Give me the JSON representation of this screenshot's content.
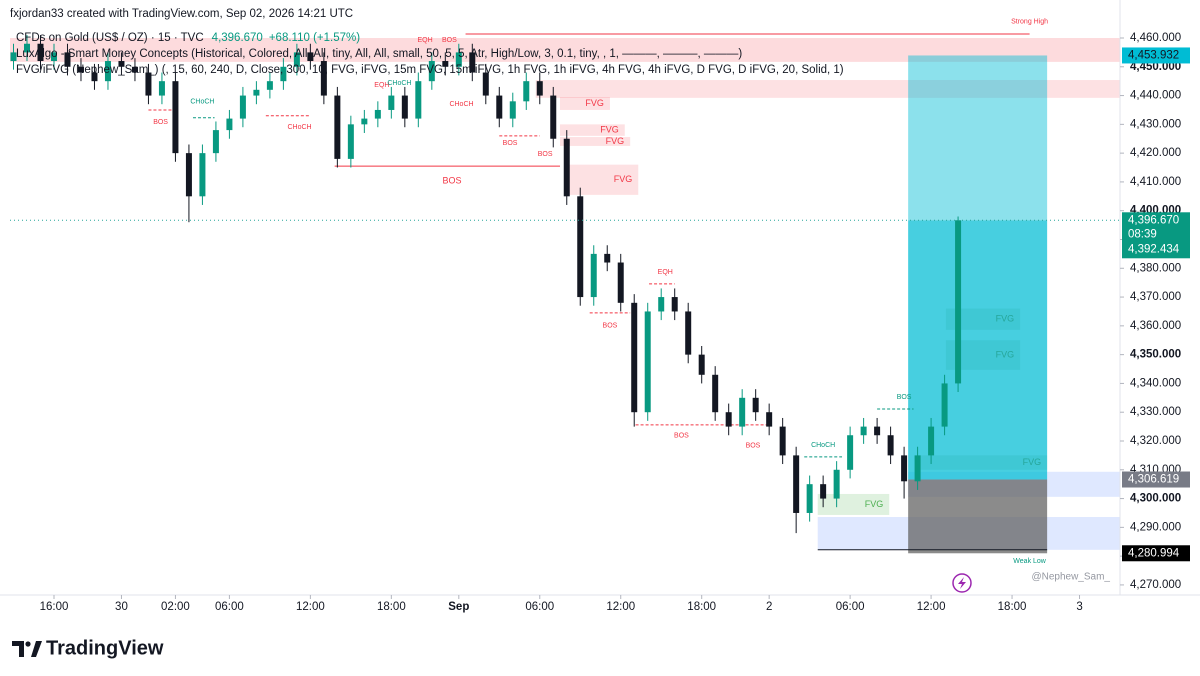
{
  "chart_data": {
    "type": "candlestick",
    "credit": "fxjordan33 created with TradingView.com, Sep 02, 2026 14:21 UTC",
    "title": "CFDs on Gold (US$ / OZ) · 15 · TVC",
    "price_text": "4,396.670",
    "change_text": "+68.110 (+1.57%)",
    "indicators": [
      "LuxAlgo - Smart Money Concepts (Historical, Colored, All, All, tiny, All, All, small, 50, 5, 5, Atr, High/Low, 3, 0.1, tiny, , 1, ———, ———, ———)",
      "FVG/iFVG (Nephew_Sam_) (, 15, 60, 240, D, Close, 300, 10, FVG, iFVG, 15m FVG, 15m iFVG, 1h FVG, 1h iFVG, 4h FVG, 4h iFVG, D FVG, D iFVG, 20, Solid, 1)"
    ],
    "watermark": "@Nephew_Sam_",
    "brand": "TradingView",
    "grid": false,
    "xlim": [
      -3.26,
      79
    ],
    "ylim": [
      4266.5,
      4466.25
    ],
    "xticks": [
      {
        "value": 0,
        "label": "16:00"
      },
      {
        "value": 5,
        "label": "30"
      },
      {
        "value": 9,
        "label": "02:00"
      },
      {
        "value": 13,
        "label": "06:00"
      },
      {
        "value": 19,
        "label": "12:00"
      },
      {
        "value": 25,
        "label": "18:00"
      },
      {
        "value": 30,
        "label": "Sep",
        "bold": true
      },
      {
        "value": 36,
        "label": "06:00"
      },
      {
        "value": 42,
        "label": "12:00"
      },
      {
        "value": 48,
        "label": "18:00"
      },
      {
        "value": 53,
        "label": "2"
      },
      {
        "value": 59,
        "label": "06:00"
      },
      {
        "value": 65,
        "label": "12:00"
      },
      {
        "value": 71,
        "label": "18:00"
      },
      {
        "value": 76,
        "label": "3"
      }
    ],
    "yticks": [
      {
        "value": 4270,
        "label": "4,270.000"
      },
      {
        "value": 4280,
        "label": "4,280.000"
      },
      {
        "value": 4290,
        "label": "4,290.000"
      },
      {
        "value": 4300,
        "label": "4,300.000"
      },
      {
        "value": 4310,
        "label": "4,310.000"
      },
      {
        "value": 4320,
        "label": "4,320.000"
      },
      {
        "value": 4330,
        "label": "4,330.000"
      },
      {
        "value": 4340,
        "label": "4,340.000"
      },
      {
        "value": 4350,
        "label": "4,350.000"
      },
      {
        "value": 4360,
        "label": "4,360.000"
      },
      {
        "value": 4370,
        "label": "4,370.000"
      },
      {
        "value": 4380,
        "label": "4,380.000"
      },
      {
        "value": 4390,
        "label": "4,390.000"
      },
      {
        "value": 4400,
        "label": "4,400.000"
      },
      {
        "value": 4410,
        "label": "4,410.000"
      },
      {
        "value": 4420,
        "label": "4,420.000"
      },
      {
        "value": 4430,
        "label": "4,430.000"
      },
      {
        "value": 4440,
        "label": "4,440.000"
      },
      {
        "value": 4450,
        "label": "4,450.000"
      },
      {
        "value": 4460,
        "label": "4,460.000"
      }
    ],
    "candles": {
      "up_color": "#089981",
      "down_color": "#131722",
      "x": [
        -3,
        -2,
        -1,
        0,
        1,
        2,
        3,
        4,
        5,
        6,
        7,
        8,
        9,
        10,
        11,
        12,
        13,
        14,
        15,
        16,
        17,
        18,
        19,
        20,
        21,
        22,
        23,
        24,
        25,
        26,
        27,
        28,
        29,
        30,
        31,
        32,
        33,
        34,
        35,
        36,
        37,
        38,
        39,
        40,
        41,
        42,
        43,
        44,
        45,
        46,
        47,
        48,
        49,
        50,
        51,
        52,
        53,
        54,
        55,
        56,
        57,
        58,
        59,
        60,
        61,
        62,
        63,
        64,
        65,
        66,
        67
      ],
      "open": [
        4452,
        4455,
        4458,
        4452,
        4455,
        4450,
        4448,
        4445,
        4452,
        4450,
        4448,
        4440,
        4445,
        4420,
        4405,
        4420,
        4428,
        4432,
        4440,
        4442,
        4445,
        4450,
        4455,
        4452,
        4440,
        4418,
        4430,
        4432,
        4435,
        4440,
        4432,
        4445,
        4452,
        4450,
        4455,
        4448,
        4440,
        4432,
        4438,
        4445,
        4440,
        4425,
        4405,
        4370,
        4385,
        4382,
        4368,
        4330,
        4365,
        4370,
        4365,
        4350,
        4343,
        4330,
        4325,
        4335,
        4330,
        4325,
        4315,
        4295,
        4305,
        4300,
        4310,
        4322,
        4325,
        4322,
        4315,
        4306,
        4315,
        4325,
        4340
      ],
      "high": [
        4458,
        4461,
        4461,
        4458,
        4458,
        4453,
        4451,
        4455,
        4455,
        4453,
        4451,
        4448,
        4448,
        4423,
        4423,
        4431,
        4435,
        4443,
        4445,
        4448,
        4453,
        4458,
        4458,
        4455,
        4443,
        4433,
        4435,
        4438,
        4443,
        4443,
        4448,
        4455,
        4455,
        4458,
        4458,
        4451,
        4443,
        4441,
        4448,
        4448,
        4443,
        4428,
        4408,
        4388,
        4388,
        4385,
        4371,
        4368,
        4373,
        4373,
        4368,
        4353,
        4346,
        4333,
        4338,
        4338,
        4333,
        4328,
        4318,
        4308,
        4308,
        4313,
        4325,
        4328,
        4328,
        4325,
        4318,
        4318,
        4328,
        4343,
        4398
      ],
      "low": [
        4449,
        4452,
        4449,
        4449,
        4447,
        4445,
        4442,
        4442,
        4447,
        4445,
        4437,
        4437,
        4417,
        4396,
        4402,
        4417,
        4425,
        4429,
        4437,
        4439,
        4442,
        4447,
        4449,
        4437,
        4415,
        4415,
        4427,
        4429,
        4432,
        4429,
        4429,
        4442,
        4447,
        4447,
        4445,
        4437,
        4429,
        4429,
        4435,
        4437,
        4422,
        4402,
        4367,
        4367,
        4379,
        4365,
        4325,
        4327,
        4362,
        4362,
        4347,
        4340,
        4327,
        4322,
        4322,
        4327,
        4322,
        4312,
        4288,
        4292,
        4297,
        4297,
        4307,
        4319,
        4319,
        4312,
        4300,
        4303,
        4312,
        4322,
        4337
      ],
      "close": [
        4455,
        4458,
        4452,
        4455,
        4450,
        4448,
        4445,
        4452,
        4450,
        4448,
        4440,
        4445,
        4420,
        4405,
        4420,
        4428,
        4432,
        4440,
        4442,
        4445,
        4450,
        4455,
        4452,
        4440,
        4418,
        4430,
        4432,
        4435,
        4440,
        4432,
        4445,
        4452,
        4450,
        4455,
        4448,
        4440,
        4432,
        4438,
        4445,
        4440,
        4425,
        4405,
        4370,
        4385,
        4382,
        4368,
        4330,
        4365,
        4370,
        4365,
        4350,
        4343,
        4330,
        4325,
        4335,
        4330,
        4325,
        4315,
        4295,
        4305,
        4300,
        4310,
        4322,
        4325,
        4322,
        4315,
        4306,
        4315,
        4325,
        4340,
        4396.67
      ]
    },
    "zones": [
      {
        "x": [
          -3.26,
          79
        ],
        "y": [
          4451.7,
          4460
        ],
        "color": "rgba(242,54,69,0.18)"
      },
      {
        "x": [
          35.7,
          79
        ],
        "y": [
          4439.2,
          4445.4
        ],
        "color": "rgba(242,54,69,0.15)"
      },
      {
        "x": [
          37.5,
          41.2
        ],
        "y": [
          4435,
          4439.5
        ],
        "color": "rgba(242,54,69,0.15)",
        "label": "FVG",
        "label_color": "#f23645"
      },
      {
        "x": [
          37.5,
          42.3
        ],
        "y": [
          4426,
          4430
        ],
        "color": "rgba(242,54,69,0.15)",
        "label": "FVG",
        "label_color": "#f23645"
      },
      {
        "x": [
          37.5,
          42.7
        ],
        "y": [
          4422.5,
          4425.6
        ],
        "color": "rgba(242,54,69,0.15)",
        "label": "FVG",
        "label_color": "#f23645"
      },
      {
        "x": [
          37.9,
          43.3
        ],
        "y": [
          4405.5,
          4416
        ],
        "color": "rgba(242,54,69,0.15)",
        "label": "FVG",
        "label_color": "#f23645"
      },
      {
        "x": [
          56.6,
          61.9
        ],
        "y": [
          4294.3,
          4301.6
        ],
        "color": "rgba(76,175,80,0.18)",
        "label": "FVG",
        "label_color": "#4caf50"
      },
      {
        "x": [
          56.6,
          79
        ],
        "y": [
          4282.2,
          4293.6
        ],
        "color": "rgba(41,98,255,0.15)"
      },
      {
        "x": [
          63.3,
          79
        ],
        "y": [
          4300.6,
          4309.3
        ],
        "color": "rgba(41,98,255,0.15)"
      }
    ],
    "position": {
      "x": [
        63.3,
        73.6
      ],
      "target": 4453.932,
      "entry": 4306.619,
      "stop": 4280.994,
      "upper_color": "rgba(0,188,212,0.45)",
      "profit_color": "rgba(0,188,212,0.72)",
      "loss_color": "rgba(100,100,100,0.75)"
    },
    "inner_zones": [
      {
        "x": [
          66.1,
          71.6
        ],
        "y": [
          4358.6,
          4366
        ],
        "color": "rgba(8,153,129,0.12)",
        "label": "FVG",
        "label_color": "#26a69a"
      },
      {
        "x": [
          66.1,
          71.6
        ],
        "y": [
          4344.7,
          4355
        ],
        "color": "rgba(8,153,129,0.12)",
        "label": "FVG",
        "label_color": "#26a69a"
      },
      {
        "x": [
          64,
          73.6
        ],
        "y": [
          4310,
          4315
        ],
        "color": "rgba(8,153,129,0.12)",
        "label": "FVG",
        "label_color": "#26a69a"
      }
    ],
    "lines": [
      {
        "x": [
          7,
          9
        ],
        "y": 4435,
        "color": "#f23645",
        "dash": true
      },
      {
        "x": [
          10.3,
          11.9
        ],
        "y": 4432.3,
        "color": "#089981",
        "dash": true
      },
      {
        "x": [
          15.7,
          19
        ],
        "y": 4433,
        "color": "#f23645",
        "dash": true
      },
      {
        "x": [
          20.8,
          37.5
        ],
        "y": 4415.5,
        "color": "#f23645",
        "dash": false
      },
      {
        "x": [
          30.5,
          72.3
        ],
        "y": 4461.4,
        "color": "#f23645",
        "dash": false
      },
      {
        "x": [
          33,
          36
        ],
        "y": 4426,
        "color": "#f23645",
        "dash": true
      },
      {
        "x": [
          39.7,
          42.7
        ],
        "y": 4364.5,
        "color": "#f23645",
        "dash": true
      },
      {
        "x": [
          43.1,
          53
        ],
        "y": 4325.6,
        "color": "#f23645",
        "dash": true
      },
      {
        "x": [
          44.1,
          46
        ],
        "y": 4374.6,
        "color": "#f23645",
        "dash": true
      },
      {
        "x": [
          55.6,
          58.4
        ],
        "y": 4314.5,
        "color": "#089981",
        "dash": true
      },
      {
        "x": [
          61,
          63.7
        ],
        "y": 4331.1,
        "color": "#089981",
        "dash": true
      },
      {
        "x": [
          56.6,
          73.6
        ],
        "y": 4282.2,
        "color": "#131722",
        "dash": false
      }
    ],
    "labels": [
      {
        "text": "BOS",
        "x": 7.9,
        "y": 4430.8,
        "color": "#f23645"
      },
      {
        "text": "CHoCH",
        "x": 11,
        "y": 4437.8,
        "color": "#089981"
      },
      {
        "text": "CHoCH",
        "x": 18.2,
        "y": 4429.1,
        "color": "#f23645"
      },
      {
        "text": "EQH",
        "x": 24.3,
        "y": 4443.7,
        "color": "#f23645"
      },
      {
        "text": "CHoCH",
        "x": 25.6,
        "y": 4444.3,
        "color": "#089981"
      },
      {
        "text": "EQH",
        "x": 27.5,
        "y": 4459.3,
        "color": "#f23645"
      },
      {
        "text": "BOS",
        "x": 29.3,
        "y": 4459.3,
        "color": "#f23645"
      },
      {
        "text": "CHoCH",
        "x": 30.2,
        "y": 4437.1,
        "color": "#f23645"
      },
      {
        "text": "BOS",
        "x": 33.8,
        "y": 4423.5,
        "color": "#f23645"
      },
      {
        "text": "BOS",
        "x": 36.4,
        "y": 4419.7,
        "color": "#f23645"
      },
      {
        "text": "BOS",
        "x": 29.5,
        "y": 4410.3,
        "color": "#f23645",
        "big": true
      },
      {
        "text": "EQH",
        "x": 45.3,
        "y": 4378.7,
        "color": "#f23645"
      },
      {
        "text": "BOS",
        "x": 41.2,
        "y": 4360,
        "color": "#f23645"
      },
      {
        "text": "BOS",
        "x": 46.5,
        "y": 4321.8,
        "color": "#f23645"
      },
      {
        "text": "BOS",
        "x": 51.8,
        "y": 4318.3,
        "color": "#f23645"
      },
      {
        "text": "CHoCH",
        "x": 57,
        "y": 4318.6,
        "color": "#089981"
      },
      {
        "text": "BOS",
        "x": 63,
        "y": 4335.3,
        "color": "#089981"
      },
      {
        "text": "Weak Low",
        "x": 72.3,
        "y": 4278.3,
        "color": "#089981"
      },
      {
        "text": "Strong High",
        "x": 72.3,
        "y": 4465.6,
        "color": "#f23645"
      }
    ],
    "price_labels": [
      {
        "value": 4453.932,
        "label": "4,453.932",
        "bg": "#00bcd4",
        "fg": "#131722"
      },
      {
        "value": 4306.619,
        "label": "4,306.619",
        "bg": "#787b86",
        "fg": "#ffffff"
      },
      {
        "value": 4280.994,
        "label": "4,280.994",
        "bg": "#000000",
        "fg": "#ffffff"
      }
    ],
    "last_price": {
      "value": 4396.67,
      "label": "4,396.670",
      "countdown": "08:39",
      "second": {
        "value": 4392.434,
        "label": "4,392.434"
      },
      "bg": "#089981",
      "line_color": "#26a69a"
    }
  }
}
